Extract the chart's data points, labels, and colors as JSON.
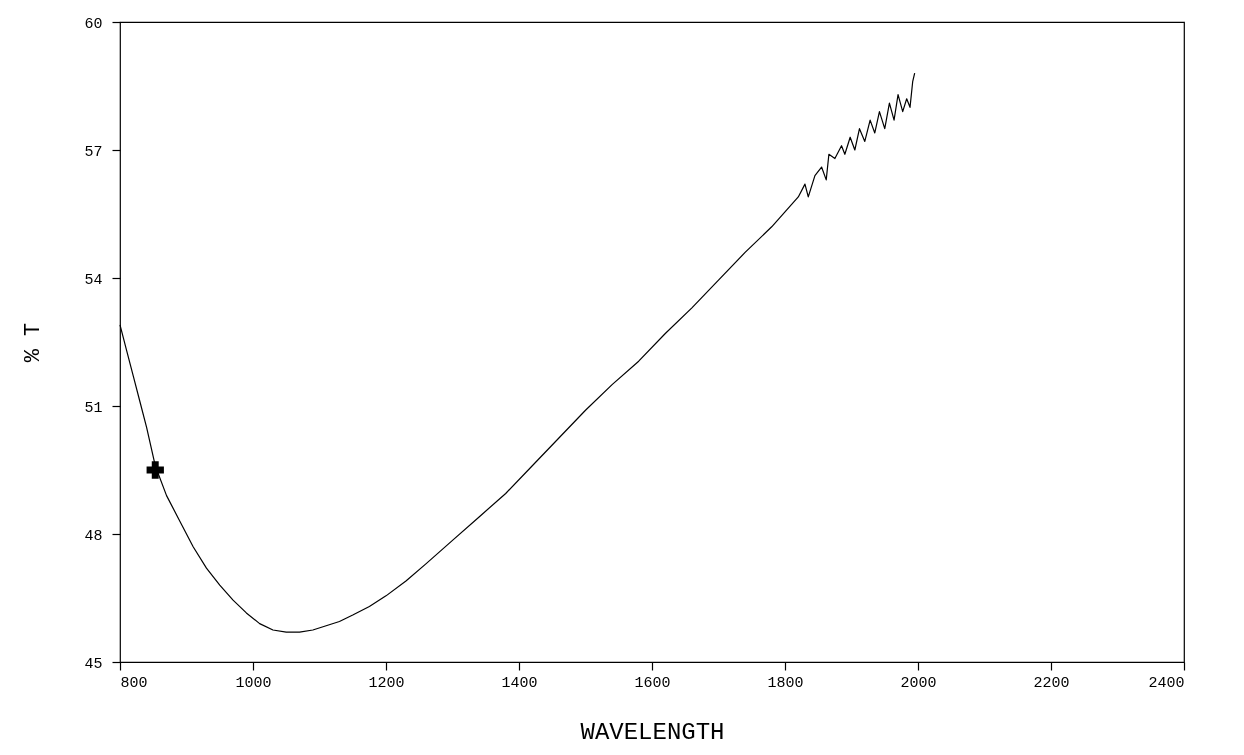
{
  "chart_data": {
    "type": "line",
    "xlabel": "WAVELENGTH",
    "ylabel": "% T",
    "xlim": [
      800,
      2400
    ],
    "xticks": [
      800,
      1000,
      1200,
      1400,
      1600,
      1800,
      2000,
      2200,
      2400
    ],
    "ylim": [
      45,
      60
    ],
    "yticks": [
      45,
      48,
      51,
      54,
      57,
      60
    ],
    "grid": false,
    "series": [
      {
        "color": "#000000",
        "x": [
          800,
          810,
          820,
          830,
          840,
          853,
          870,
          890,
          910,
          930,
          950,
          970,
          990,
          1010,
          1030,
          1050,
          1070,
          1090,
          1110,
          1130,
          1150,
          1175,
          1200,
          1230,
          1260,
          1300,
          1340,
          1380,
          1420,
          1460,
          1500,
          1540,
          1580,
          1620,
          1660,
          1700,
          1740,
          1780,
          1800,
          1820,
          1830,
          1835,
          1845,
          1855,
          1862,
          1866,
          1875,
          1885,
          1890,
          1898,
          1905,
          1912,
          1920,
          1928,
          1935,
          1942,
          1950,
          1957,
          1964,
          1970,
          1977,
          1983,
          1988,
          1992,
          1995
        ],
        "values": [
          52.9,
          52.3,
          51.7,
          51.1,
          50.5,
          49.6,
          48.9,
          48.3,
          47.7,
          47.2,
          46.8,
          46.45,
          46.15,
          45.9,
          45.75,
          45.7,
          45.7,
          45.75,
          45.85,
          45.95,
          46.1,
          46.3,
          46.55,
          46.9,
          47.3,
          47.85,
          48.4,
          48.95,
          49.6,
          50.25,
          50.9,
          51.5,
          52.05,
          52.7,
          53.3,
          53.95,
          54.6,
          55.2,
          55.55,
          55.9,
          56.2,
          55.9,
          56.4,
          56.6,
          56.3,
          56.9,
          56.8,
          57.1,
          56.9,
          57.3,
          57.0,
          57.5,
          57.2,
          57.7,
          57.4,
          57.9,
          57.5,
          58.1,
          57.7,
          58.3,
          57.9,
          58.2,
          58.0,
          58.6,
          58.8
        ]
      },
      {
        "type": "scatter",
        "marker": "cross",
        "color": "#000000",
        "x": [
          853
        ],
        "values": [
          49.5
        ]
      }
    ]
  }
}
